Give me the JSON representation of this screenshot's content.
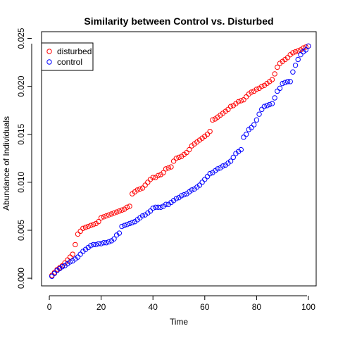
{
  "chart_data": {
    "type": "scatter",
    "title": "Similarity between Control vs. Disturbed",
    "xlabel": "Time",
    "ylabel": "Abundance of Individuals",
    "xlim": [
      -3,
      103
    ],
    "ylim": [
      -0.0008,
      0.0257
    ],
    "xticks": [
      0,
      20,
      40,
      60,
      80,
      100
    ],
    "xtick_labels": [
      "0",
      "20",
      "40",
      "60",
      "80",
      "100"
    ],
    "yticks": [
      0.0,
      0.005,
      0.01,
      0.015,
      0.02,
      0.025
    ],
    "ytick_labels": [
      "0.000",
      "0.005",
      "0.010",
      "0.015",
      "0.020",
      "0.025"
    ],
    "legend": {
      "placement": "top-left",
      "marker": "open-circle"
    },
    "grid": false,
    "series": [
      {
        "name": "disturbed",
        "color": "#ff0000",
        "x": [
          1,
          2,
          3,
          4,
          5,
          6,
          7,
          8,
          9,
          10,
          11,
          12,
          13,
          14,
          15,
          16,
          17,
          18,
          19,
          20,
          21,
          22,
          23,
          24,
          25,
          26,
          27,
          28,
          29,
          30,
          31,
          32,
          33,
          34,
          35,
          36,
          37,
          38,
          39,
          40,
          41,
          42,
          43,
          44,
          45,
          46,
          47,
          48,
          49,
          50,
          51,
          52,
          53,
          54,
          55,
          56,
          57,
          58,
          59,
          60,
          61,
          62,
          63,
          64,
          65,
          66,
          67,
          68,
          69,
          70,
          71,
          72,
          73,
          74,
          75,
          76,
          77,
          78,
          79,
          80,
          81,
          82,
          83,
          84,
          85,
          86,
          87,
          88,
          89,
          90,
          91,
          92,
          93,
          94,
          95,
          96,
          97,
          98,
          99,
          100
        ],
        "y": [
          0.0003,
          0.0006,
          0.0009,
          0.0011,
          0.0013,
          0.0016,
          0.0019,
          0.0022,
          0.0025,
          0.0035,
          0.0046,
          0.0049,
          0.0052,
          0.0053,
          0.0054,
          0.0055,
          0.0056,
          0.0057,
          0.0059,
          0.0063,
          0.0064,
          0.0065,
          0.0066,
          0.0067,
          0.0068,
          0.0069,
          0.007,
          0.0071,
          0.0072,
          0.0074,
          0.0075,
          0.0088,
          0.009,
          0.0092,
          0.0093,
          0.0094,
          0.0097,
          0.01,
          0.0103,
          0.0105,
          0.0105,
          0.0107,
          0.0108,
          0.011,
          0.0114,
          0.0115,
          0.0116,
          0.0122,
          0.0125,
          0.0126,
          0.0127,
          0.0129,
          0.0131,
          0.0134,
          0.0138,
          0.014,
          0.0142,
          0.0144,
          0.0146,
          0.0148,
          0.015,
          0.0153,
          0.0165,
          0.0166,
          0.0168,
          0.017,
          0.0172,
          0.0174,
          0.0176,
          0.0179,
          0.018,
          0.0182,
          0.0184,
          0.0185,
          0.0186,
          0.0189,
          0.0192,
          0.0194,
          0.0195,
          0.0197,
          0.0198,
          0.02,
          0.0201,
          0.0203,
          0.0205,
          0.0207,
          0.0213,
          0.022,
          0.0224,
          0.0226,
          0.0228,
          0.023,
          0.0233,
          0.0235,
          0.0236,
          0.0237,
          0.0238,
          0.024,
          0.0241,
          0.0242
        ]
      },
      {
        "name": "control",
        "color": "#0000ff",
        "x": [
          1,
          2,
          3,
          4,
          5,
          6,
          7,
          8,
          9,
          10,
          11,
          12,
          13,
          14,
          15,
          16,
          17,
          18,
          19,
          20,
          21,
          22,
          23,
          24,
          25,
          26,
          27,
          28,
          29,
          30,
          31,
          32,
          33,
          34,
          35,
          36,
          37,
          38,
          39,
          40,
          41,
          42,
          43,
          44,
          45,
          46,
          47,
          48,
          49,
          50,
          51,
          52,
          53,
          54,
          55,
          56,
          57,
          58,
          59,
          60,
          61,
          62,
          63,
          64,
          65,
          66,
          67,
          68,
          69,
          70,
          71,
          72,
          73,
          74,
          75,
          76,
          77,
          78,
          79,
          80,
          81,
          82,
          83,
          84,
          85,
          86,
          87,
          88,
          89,
          90,
          91,
          92,
          93,
          94,
          95,
          96,
          97,
          98,
          99,
          100
        ],
        "y": [
          0.0002,
          0.0005,
          0.0008,
          0.001,
          0.0012,
          0.0013,
          0.0015,
          0.0017,
          0.0018,
          0.002,
          0.0022,
          0.0025,
          0.0028,
          0.003,
          0.0032,
          0.0034,
          0.0035,
          0.0035,
          0.0036,
          0.0036,
          0.0037,
          0.0037,
          0.0038,
          0.0039,
          0.0041,
          0.0045,
          0.0047,
          0.0054,
          0.0055,
          0.0056,
          0.0057,
          0.0058,
          0.0059,
          0.0061,
          0.0063,
          0.0065,
          0.0066,
          0.0068,
          0.007,
          0.0073,
          0.0074,
          0.0074,
          0.0074,
          0.0075,
          0.0077,
          0.0077,
          0.0079,
          0.0081,
          0.0083,
          0.0084,
          0.0086,
          0.0087,
          0.0088,
          0.009,
          0.0092,
          0.0093,
          0.0095,
          0.0097,
          0.01,
          0.0103,
          0.0106,
          0.0109,
          0.011,
          0.0112,
          0.0114,
          0.0115,
          0.0117,
          0.0118,
          0.012,
          0.0122,
          0.0126,
          0.013,
          0.0132,
          0.0134,
          0.0147,
          0.015,
          0.0155,
          0.0157,
          0.016,
          0.0165,
          0.0171,
          0.0176,
          0.0179,
          0.018,
          0.0181,
          0.0182,
          0.0188,
          0.0195,
          0.0198,
          0.0203,
          0.0204,
          0.0205,
          0.0205,
          0.0215,
          0.0222,
          0.0228,
          0.0233,
          0.0236,
          0.0238,
          0.0242
        ]
      }
    ]
  }
}
